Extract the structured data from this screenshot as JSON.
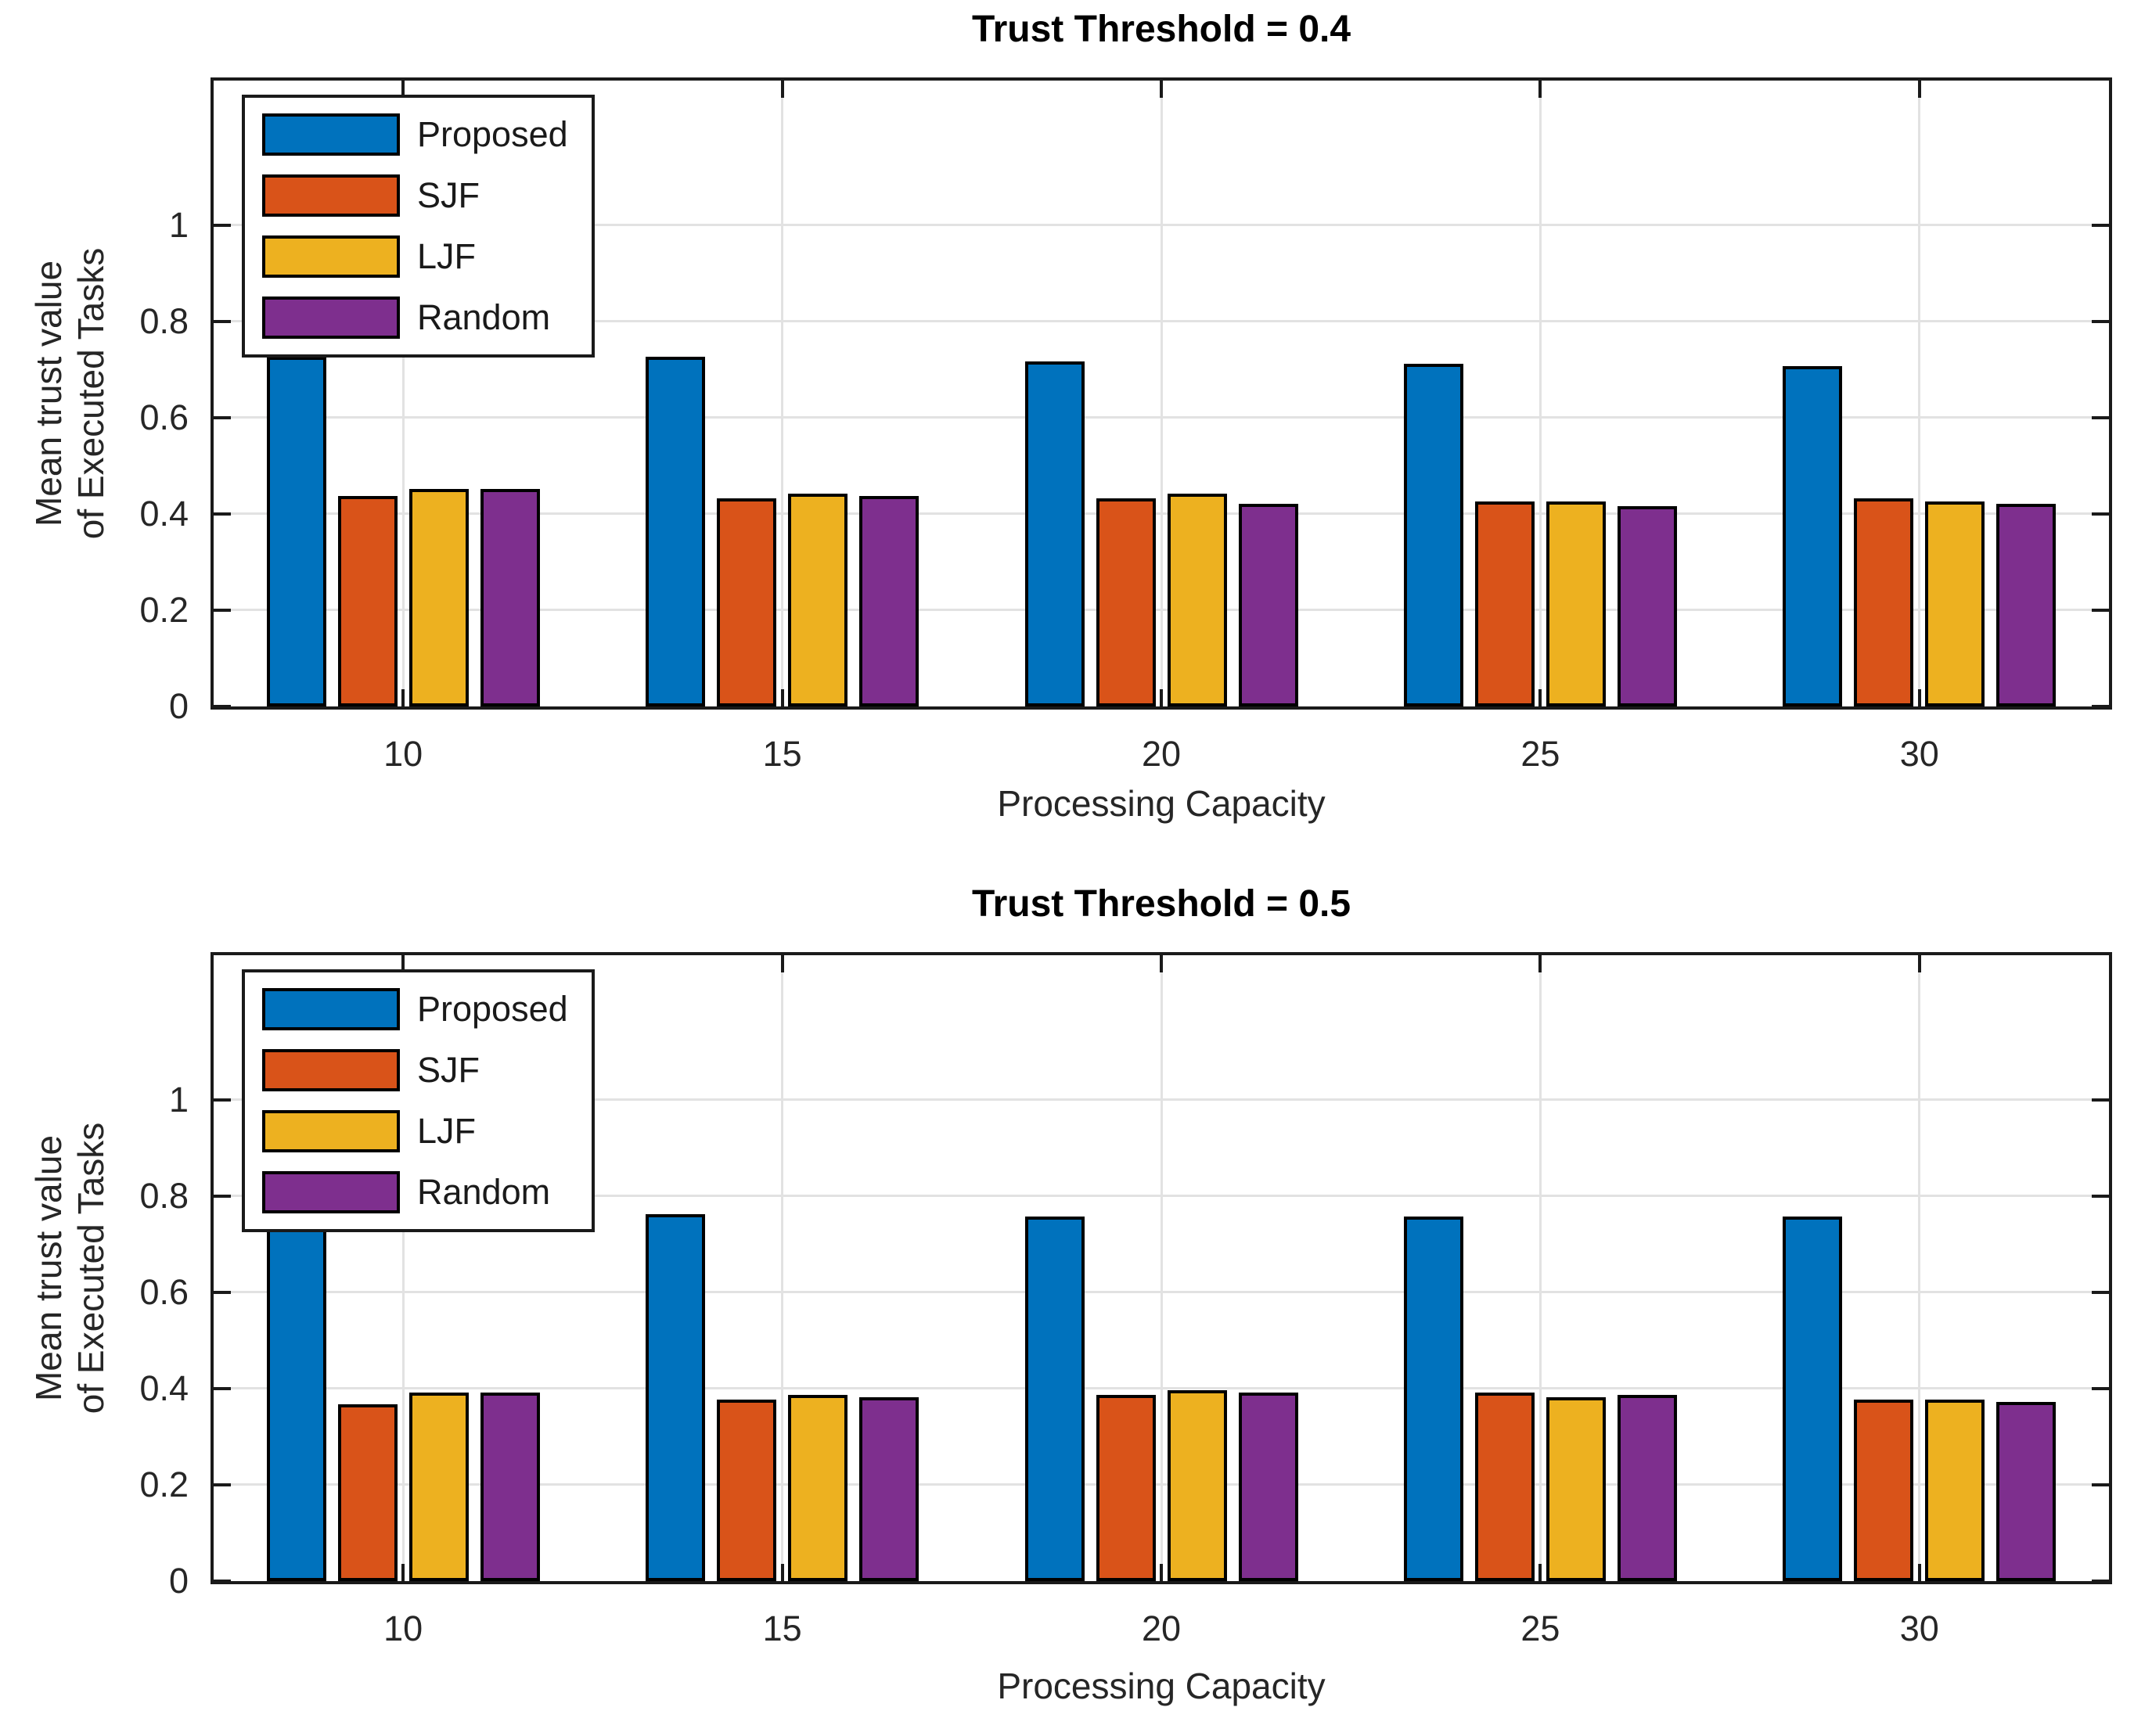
{
  "figure": {
    "bg": "#ffffff",
    "axis_color": "#1a1a1a",
    "grid_color": "#e2e2e2",
    "bar_edge_color": "#000000",
    "tick_text_color": "#262626",
    "title_color": "#000000"
  },
  "chart_data": [
    {
      "type": "bar",
      "title": "Trust Threshold = 0.4",
      "xlabel": "Processing Capacity",
      "ylabel": "Mean trust value of Executed Tasks",
      "ylabel_lines": [
        "Mean trust value",
        "of Executed Tasks"
      ],
      "categories": [
        "10",
        "15",
        "20",
        "25",
        "30"
      ],
      "yticks": [
        0,
        0.2,
        0.4,
        0.6,
        0.8,
        1
      ],
      "ylim": [
        0,
        1.3
      ],
      "grid": "on",
      "legend_position": "top-left",
      "series": [
        {
          "name": "Proposed",
          "color": "#0072BD",
          "values": [
            0.72,
            0.72,
            0.71,
            0.705,
            0.7
          ]
        },
        {
          "name": "SJF",
          "color": "#D95319",
          "values": [
            0.43,
            0.425,
            0.425,
            0.42,
            0.425
          ]
        },
        {
          "name": "LJF",
          "color": "#EDB120",
          "values": [
            0.445,
            0.435,
            0.435,
            0.42,
            0.42
          ]
        },
        {
          "name": "Random",
          "color": "#7E2F8E",
          "values": [
            0.445,
            0.43,
            0.415,
            0.41,
            0.415
          ]
        }
      ]
    },
    {
      "type": "bar",
      "title": "Trust Threshold = 0.5",
      "xlabel": "Processing Capacity",
      "ylabel": "Mean trust value of Executed Tasks",
      "ylabel_lines": [
        "Mean trust value",
        "of Executed Tasks"
      ],
      "categories": [
        "10",
        "15",
        "20",
        "25",
        "30"
      ],
      "yticks": [
        0,
        0.2,
        0.4,
        0.6,
        0.8,
        1
      ],
      "ylim": [
        0,
        1.3
      ],
      "grid": "on",
      "legend_position": "top-left",
      "series": [
        {
          "name": "Proposed",
          "color": "#0072BD",
          "values": [
            0.75,
            0.755,
            0.75,
            0.75,
            0.75
          ]
        },
        {
          "name": "SJF",
          "color": "#D95319",
          "values": [
            0.36,
            0.37,
            0.38,
            0.385,
            0.37
          ]
        },
        {
          "name": "LJF",
          "color": "#EDB120",
          "values": [
            0.385,
            0.38,
            0.39,
            0.375,
            0.37
          ]
        },
        {
          "name": "Random",
          "color": "#7E2F8E",
          "values": [
            0.385,
            0.375,
            0.385,
            0.38,
            0.365
          ]
        }
      ]
    }
  ]
}
